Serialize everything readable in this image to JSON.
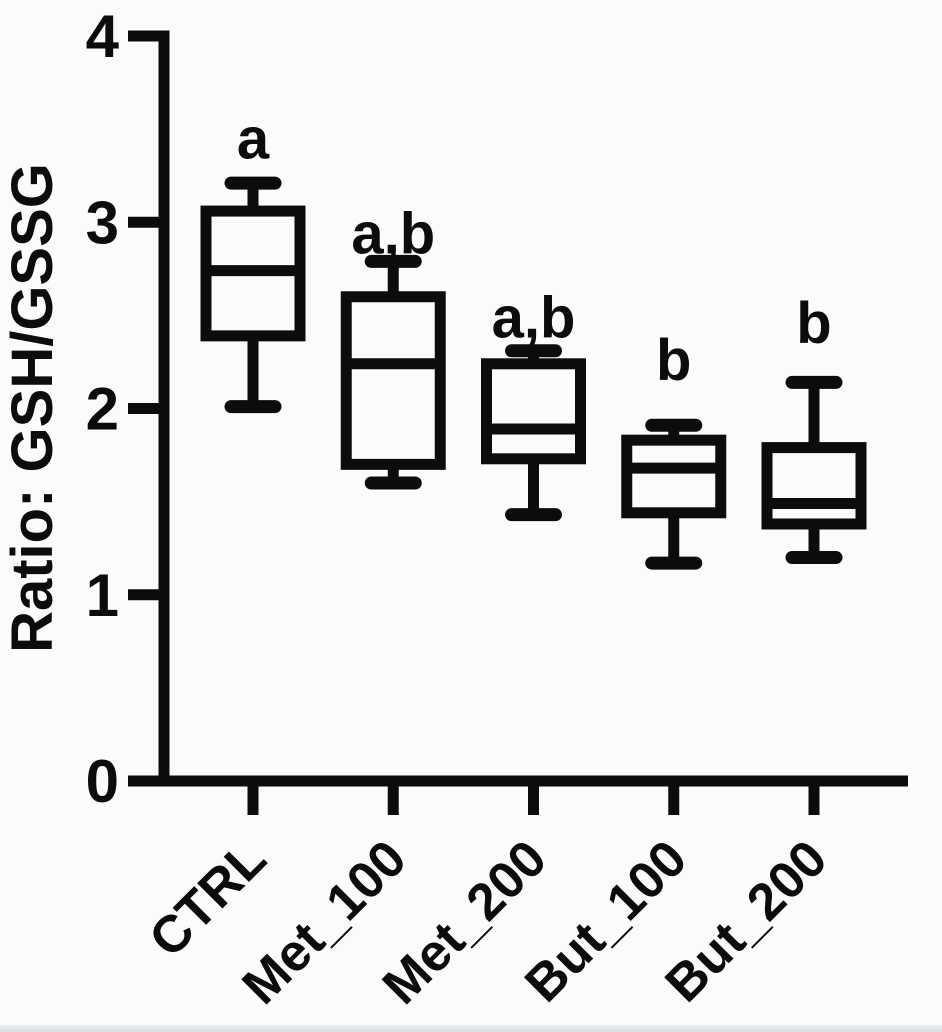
{
  "figure": {
    "background": "#f9fbfd",
    "ink": "#0c0c0c",
    "bottom_edge": "#dcdfe2"
  },
  "chart_data": {
    "type": "box",
    "title": "",
    "xlabel": "",
    "ylabel": "Ratio: GSH/GSSG",
    "ylim": [
      0,
      4
    ],
    "yticks": [
      0,
      1,
      2,
      3,
      4
    ],
    "grid": false,
    "legend": "none",
    "categories": [
      "CTRL",
      "Met_100",
      "Met_200",
      "But_100",
      "But_200"
    ],
    "boxes": [
      {
        "category": "CTRL",
        "whisker_min": 2.01,
        "q1": 2.39,
        "median": 2.74,
        "q3": 3.06,
        "whisker_max": 3.21,
        "sig_label": "a",
        "sig_label_y": 3.46
      },
      {
        "category": "Met_100",
        "whisker_min": 1.6,
        "q1": 1.7,
        "median": 2.24,
        "q3": 2.6,
        "whisker_max": 2.79,
        "sig_label": "a,b",
        "sig_label_y": 2.95
      },
      {
        "category": "Met_200",
        "whisker_min": 1.43,
        "q1": 1.73,
        "median": 1.89,
        "q3": 2.24,
        "whisker_max": 2.31,
        "sig_label": "a,b",
        "sig_label_y": 2.5
      },
      {
        "category": "But_100",
        "whisker_min": 1.17,
        "q1": 1.44,
        "median": 1.68,
        "q3": 1.83,
        "whisker_max": 1.91,
        "sig_label": "b",
        "sig_label_y": 2.27
      },
      {
        "category": "But_200",
        "whisker_min": 1.2,
        "q1": 1.38,
        "median": 1.49,
        "q3": 1.79,
        "whisker_max": 2.14,
        "sig_label": "b",
        "sig_label_y": 2.47
      }
    ]
  }
}
